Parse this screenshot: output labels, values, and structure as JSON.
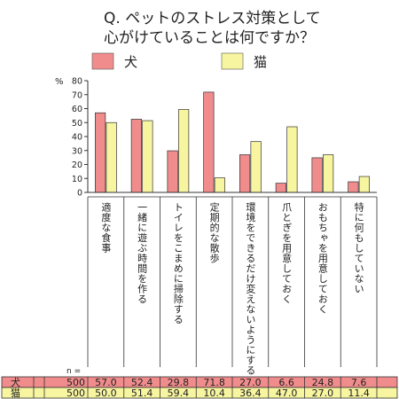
{
  "chart_data": {
    "type": "bar",
    "title_line1": "Q. ペットのストレス対策として",
    "title_line2": "心がけていることは何ですか？",
    "ylabel": "%",
    "ylim": [
      0,
      80
    ],
    "yticks": [
      "80",
      "70",
      "60",
      "50",
      "40",
      "30",
      "20",
      "10",
      "0"
    ],
    "categories": [
      "適度な食事",
      "一緒に遊ぶ時間を作る",
      "トイレをこまめに掃除する",
      "定期的な散歩",
      "環境をできるだけ変えないようにする",
      "爪とぎを用意しておく",
      "おもちゃを用意しておく",
      "特に何もしていない"
    ],
    "series": [
      {
        "name": "犬",
        "color": "#f08c8c",
        "n": "500",
        "values": [
          57.0,
          52.4,
          29.8,
          71.8,
          27.0,
          6.6,
          24.8,
          7.6
        ],
        "labels": [
          "57.0",
          "52.4",
          "29.8",
          "71.8",
          "27.0",
          "6.6",
          "24.8",
          "7.6"
        ]
      },
      {
        "name": "猫",
        "color": "#f7f5a0",
        "n": "500",
        "values": [
          50.0,
          51.4,
          59.4,
          10.4,
          36.4,
          47.0,
          27.0,
          11.4
        ],
        "labels": [
          "50.0",
          "51.4",
          "59.4",
          "10.4",
          "36.4",
          "47.0",
          "27.0",
          "11.4"
        ]
      }
    ],
    "n_label": "n =",
    "legend_position": "top",
    "grid": false
  }
}
